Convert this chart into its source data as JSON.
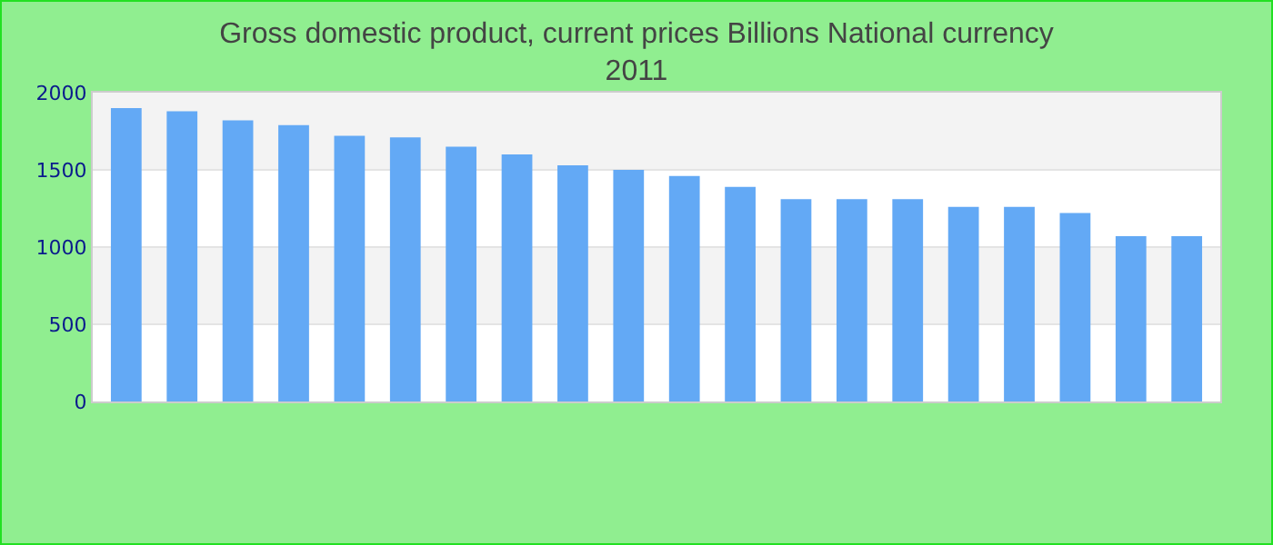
{
  "chart_data": {
    "type": "bar",
    "title": "Gross domestic product, current prices Billions National currency",
    "subtitle": "2011",
    "categories": [
      null,
      null,
      null,
      null,
      null,
      null,
      null,
      null,
      null,
      null,
      null,
      null,
      null,
      null,
      null,
      null,
      null,
      null,
      null,
      null
    ],
    "values": [
      1900,
      1880,
      1820,
      1790,
      1720,
      1710,
      1650,
      1600,
      1530,
      1500,
      1460,
      1390,
      1310,
      1310,
      1310,
      1260,
      1260,
      1220,
      1070,
      1070
    ],
    "color": "#63a9f5",
    "ylim": [
      0,
      2000
    ],
    "yticks": [
      0,
      500,
      1000,
      1500,
      2000
    ],
    "grid": "y"
  }
}
